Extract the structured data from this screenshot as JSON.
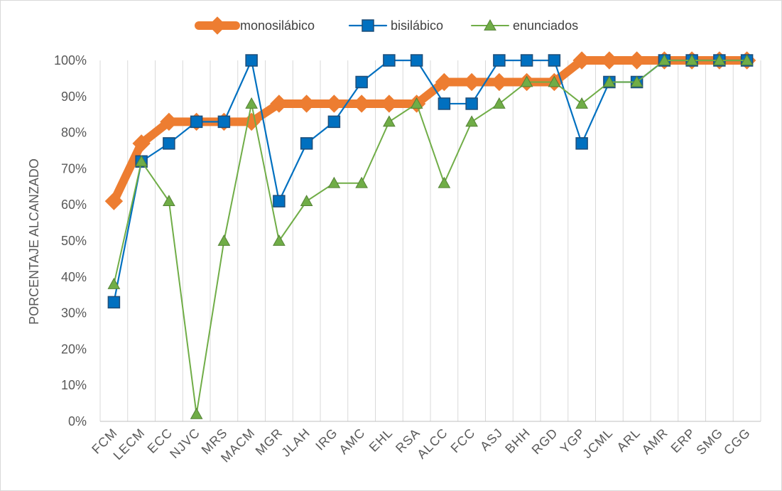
{
  "chart_data": {
    "type": "line",
    "title": "",
    "xlabel": "",
    "ylabel": "PORCENTAJE ALCANZADO",
    "ylim": [
      0,
      100
    ],
    "yticks": [
      "0%",
      "10%",
      "20%",
      "30%",
      "40%",
      "50%",
      "60%",
      "70%",
      "80%",
      "90%",
      "100%"
    ],
    "grid": "vertical",
    "legend": "top",
    "categories": [
      "FCM",
      "LECM",
      "ECC",
      "NJVC",
      "MRS",
      "MACM",
      "MGR",
      "JLAH",
      "IRG",
      "AMC",
      "EHL",
      "RSA",
      "ALCC",
      "FCC",
      "ASJ",
      "BHH",
      "RGD",
      "YGP",
      "JCML",
      "ARL",
      "AMR",
      "ERP",
      "SMG",
      "CGG"
    ],
    "series": [
      {
        "name": "monosilábico",
        "color": "#ED7D31",
        "marker": "diamond",
        "values": [
          61,
          77,
          83,
          83,
          83,
          83,
          88,
          88,
          88,
          88,
          88,
          88,
          94,
          94,
          94,
          94,
          94,
          100,
          100,
          100,
          100,
          100,
          100,
          100
        ]
      },
      {
        "name": "bisilábico",
        "color": "#0070C0",
        "marker": "square",
        "values": [
          33,
          72,
          77,
          83,
          83,
          100,
          61,
          77,
          83,
          94,
          100,
          100,
          88,
          88,
          100,
          100,
          100,
          77,
          94,
          94,
          100,
          100,
          100,
          100
        ]
      },
      {
        "name": "enunciados",
        "color": "#70AD47",
        "marker": "triangle",
        "values": [
          38,
          72,
          61,
          2,
          50,
          88,
          50,
          61,
          66,
          66,
          83,
          88,
          66,
          83,
          88,
          94,
          94,
          88,
          94,
          94,
          100,
          100,
          100,
          100
        ]
      }
    ]
  }
}
